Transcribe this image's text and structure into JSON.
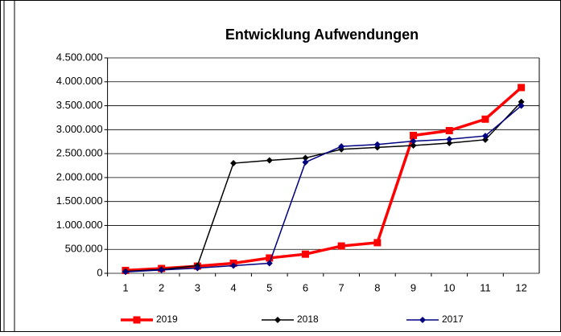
{
  "chart_data": {
    "type": "line",
    "title": "Entwicklung Aufwendungen",
    "categories": [
      "1",
      "2",
      "3",
      "4",
      "5",
      "6",
      "7",
      "8",
      "9",
      "10",
      "11",
      "12"
    ],
    "series": [
      {
        "name": "2019",
        "color": "#ff0000",
        "values": [
          60000,
          100000,
          150000,
          210000,
          320000,
          400000,
          570000,
          640000,
          2880000,
          2980000,
          3220000,
          3880000
        ]
      },
      {
        "name": "2018",
        "color": "#000000",
        "values": [
          40000,
          80000,
          160000,
          2300000,
          2360000,
          2410000,
          2590000,
          2630000,
          2670000,
          2720000,
          2790000,
          3580000
        ]
      },
      {
        "name": "2017",
        "color": "#000080",
        "values": [
          30000,
          70000,
          110000,
          160000,
          210000,
          2320000,
          2650000,
          2690000,
          2760000,
          2800000,
          2870000,
          3500000
        ]
      }
    ],
    "ylim": [
      0,
      4500000
    ],
    "yticks": [
      0,
      {
        "value": 500000,
        "label": "500.000"
      },
      {
        "value": 1000000,
        "label": "1.000.000"
      },
      {
        "value": 1500000,
        "label": "1.500.000"
      },
      {
        "value": 2000000,
        "label": "2.000.000"
      },
      {
        "value": 2500000,
        "label": "2.500.000"
      },
      {
        "value": 3000000,
        "label": "3.000.000"
      },
      {
        "value": 3500000,
        "label": "3.500.000"
      },
      {
        "value": 4000000,
        "label": "4.000.000"
      },
      {
        "value": 4500000,
        "label": "4.500.000"
      }
    ],
    "grid": true,
    "legend": "bottom"
  }
}
